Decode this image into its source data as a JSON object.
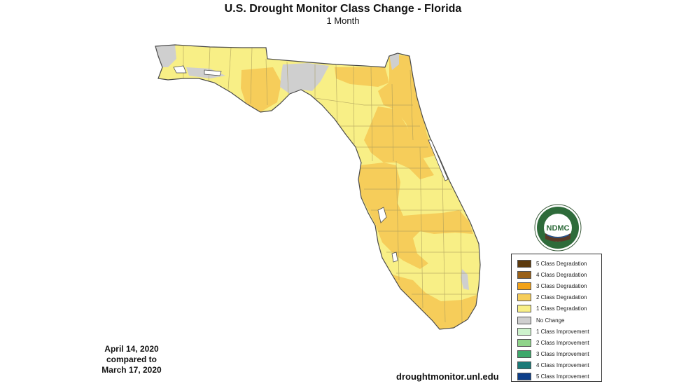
{
  "header": {
    "title": "U.S. Drought Monitor Class Change - Florida",
    "subtitle": "1 Month"
  },
  "comparison": {
    "line1": "April 14, 2020",
    "line2": "compared to",
    "line3": "March 17, 2020"
  },
  "source": "droughtmonitor.unl.edu",
  "logo": {
    "text": "NDMC",
    "ring_text": "NATIONAL DROUGHT MITIGATION CENTER • UNIVERSITY OF NEBRASKA",
    "icon": "ndmc-logo"
  },
  "legend": [
    {
      "label": "5 Class Degradation",
      "color": "#5c3a0e"
    },
    {
      "label": "4 Class Degradation",
      "color": "#9a6118"
    },
    {
      "label": "3 Class Degradation",
      "color": "#f2a218"
    },
    {
      "label": "2 Class Degradation",
      "color": "#f6cd5a"
    },
    {
      "label": "1 Class Degradation",
      "color": "#f8ef86"
    },
    {
      "label": "No Change",
      "color": "#cfcfcf"
    },
    {
      "label": "1 Class Improvement",
      "color": "#cdf2cc"
    },
    {
      "label": "2 Class Improvement",
      "color": "#8fd48a"
    },
    {
      "label": "3 Class Improvement",
      "color": "#3ea86b"
    },
    {
      "label": "4 Class Improvement",
      "color": "#1c7a78"
    },
    {
      "label": "5 Class Improvement",
      "color": "#0d3f8a"
    }
  ],
  "map": {
    "region": "Florida",
    "colors": {
      "base": "#f8ef86",
      "two_class": "#f6cd5a",
      "no_change": "#cfcfcf",
      "county_line": "#a89a5a",
      "outline": "#4a4a4a"
    }
  }
}
